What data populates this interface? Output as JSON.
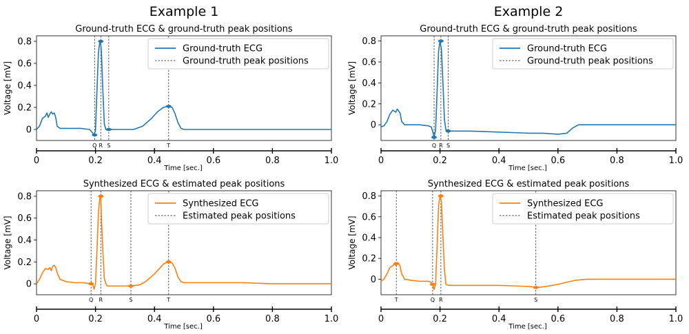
{
  "chart_data": [
    {
      "type": "line",
      "example_title": "Example 1",
      "title": "Ground-truth ECG & ground-truth peak positions",
      "ylabel": "Voltage [mV]",
      "xlabel": "Time [sec.]",
      "ylim": [
        -0.1,
        0.85
      ],
      "xlim": [
        0,
        1
      ],
      "yticks": [
        "0",
        "0.2",
        "0.4",
        "0.6",
        "0.8"
      ],
      "xticks": [
        "0",
        "0.2",
        "0.4",
        "0.6",
        "0.8",
        "1.0"
      ],
      "color": "#1f77b4",
      "legend_position": "top-right",
      "series": [
        {
          "name": "Ground-truth ECG",
          "x": [
            0,
            0.01,
            0.02,
            0.03,
            0.035,
            0.04,
            0.045,
            0.05,
            0.055,
            0.06,
            0.065,
            0.07,
            0.08,
            0.09,
            0.1,
            0.12,
            0.15,
            0.18,
            0.19,
            0.195,
            0.2,
            0.205,
            0.21,
            0.215,
            0.218,
            0.22,
            0.225,
            0.23,
            0.235,
            0.24,
            0.245,
            0.25,
            0.27,
            0.3,
            0.33,
            0.36,
            0.39,
            0.41,
            0.43,
            0.445,
            0.46,
            0.47,
            0.48,
            0.49,
            0.5,
            0.55,
            0.6,
            0.7,
            0.8,
            0.9,
            1.0
          ],
          "y": [
            0,
            0.03,
            0.1,
            0.12,
            0.15,
            0.11,
            0.14,
            0.16,
            0.14,
            0.15,
            0.11,
            0.03,
            0.01,
            0.01,
            0.01,
            0.01,
            0.01,
            0.0,
            -0.03,
            -0.05,
            -0.01,
            0.35,
            0.7,
            0.8,
            0.77,
            0.7,
            0.35,
            0.05,
            0.0,
            0.0,
            0.0,
            0.0,
            0.0,
            0.0,
            0.0,
            0.03,
            0.1,
            0.16,
            0.2,
            0.21,
            0.2,
            0.14,
            0.06,
            0.01,
            0.0,
            0.0,
            0.0,
            0.0,
            0.0,
            0.0,
            0.0
          ]
        }
      ],
      "peaks_legend": "Ground-truth peak positions",
      "peaks": [
        {
          "label": "Q",
          "x": 0.197,
          "y": -0.05
        },
        {
          "label": "R",
          "x": 0.218,
          "y": 0.8
        },
        {
          "label": "S",
          "x": 0.245,
          "y": 0.0
        },
        {
          "label": "T",
          "x": 0.448,
          "y": 0.21
        }
      ]
    },
    {
      "type": "line",
      "example_title": "Example 2",
      "title": "Ground-truth ECG & ground-truth peak positions",
      "ylabel": "Voltage [mV]",
      "xlabel": "Time [sec.]",
      "ylim": [
        -0.15,
        0.85
      ],
      "xlim": [
        0,
        1
      ],
      "yticks": [
        "0",
        "0.2",
        "0.4",
        "0.6",
        "0.8"
      ],
      "xticks": [
        "0",
        "0.2",
        "0.4",
        "0.6",
        "0.8",
        "1.0"
      ],
      "color": "#1f77b4",
      "legend_position": "top-right",
      "series": [
        {
          "name": "Ground-truth ECG",
          "x": [
            0,
            0.01,
            0.02,
            0.03,
            0.04,
            0.05,
            0.055,
            0.06,
            0.065,
            0.07,
            0.08,
            0.1,
            0.13,
            0.16,
            0.17,
            0.175,
            0.18,
            0.185,
            0.19,
            0.195,
            0.2,
            0.205,
            0.21,
            0.215,
            0.22,
            0.225,
            0.23,
            0.24,
            0.26,
            0.3,
            0.4,
            0.5,
            0.55,
            0.6,
            0.63,
            0.65,
            0.67,
            0.7,
            0.8,
            0.9,
            1.0
          ],
          "y": [
            -0.02,
            -0.01,
            0.03,
            0.1,
            0.14,
            0.12,
            0.15,
            0.13,
            0.11,
            0.03,
            0.0,
            0.0,
            0.0,
            -0.01,
            -0.02,
            -0.06,
            -0.12,
            -0.05,
            0.3,
            0.7,
            0.8,
            0.72,
            0.4,
            0.05,
            -0.05,
            -0.05,
            -0.06,
            -0.06,
            -0.06,
            -0.06,
            -0.07,
            -0.08,
            -0.08,
            -0.09,
            -0.08,
            -0.03,
            0.0,
            0.0,
            0.0,
            0.0,
            0.0
          ]
        }
      ],
      "peaks_legend": "Ground-truth peak positions",
      "peaks": [
        {
          "label": "Q",
          "x": 0.18,
          "y": -0.12
        },
        {
          "label": "R",
          "x": 0.203,
          "y": 0.8
        },
        {
          "label": "S",
          "x": 0.228,
          "y": -0.06
        }
      ]
    },
    {
      "type": "line",
      "title": "Synthesized ECG & estimated peak positions",
      "ylabel": "Voltage [mV]",
      "xlabel": "Time [sec.]",
      "ylim": [
        -0.1,
        0.85
      ],
      "xlim": [
        0,
        1
      ],
      "yticks": [
        "0",
        "0.2",
        "0.4",
        "0.6",
        "0.8"
      ],
      "xticks": [
        "0",
        "0.2",
        "0.4",
        "0.6",
        "0.8",
        "1.0"
      ],
      "color": "#ff7f0e",
      "legend_position": "top-right",
      "series": [
        {
          "name": "Synthesized ECG",
          "x": [
            0,
            0.01,
            0.02,
            0.03,
            0.04,
            0.045,
            0.05,
            0.055,
            0.06,
            0.065,
            0.07,
            0.08,
            0.1,
            0.13,
            0.16,
            0.18,
            0.19,
            0.195,
            0.2,
            0.205,
            0.21,
            0.215,
            0.218,
            0.22,
            0.225,
            0.23,
            0.235,
            0.24,
            0.26,
            0.29,
            0.32,
            0.35,
            0.37,
            0.4,
            0.42,
            0.43,
            0.445,
            0.46,
            0.47,
            0.48,
            0.49,
            0.5,
            0.55,
            0.6,
            0.7,
            0.8,
            0.9,
            1.0
          ],
          "y": [
            0,
            0.04,
            0.1,
            0.14,
            0.13,
            0.15,
            0.12,
            0.16,
            0.17,
            0.15,
            0.1,
            0.04,
            0.02,
            0.01,
            0.01,
            0.0,
            0.0,
            -0.05,
            0.0,
            0.3,
            0.65,
            0.8,
            0.78,
            0.6,
            0.3,
            0.05,
            0.0,
            -0.02,
            -0.02,
            -0.02,
            -0.02,
            -0.01,
            0.02,
            0.09,
            0.15,
            0.18,
            0.2,
            0.19,
            0.14,
            0.06,
            0.02,
            0.01,
            0.01,
            0.01,
            0.01,
            0.0,
            0.0,
            0.0
          ]
        }
      ],
      "peaks_legend": "Estimated peak positions",
      "peaks": [
        {
          "label": "Q",
          "x": 0.185,
          "y": 0.0
        },
        {
          "label": "R",
          "x": 0.218,
          "y": 0.8
        },
        {
          "label": "S",
          "x": 0.32,
          "y": -0.02
        },
        {
          "label": "T",
          "x": 0.448,
          "y": 0.2
        }
      ]
    },
    {
      "type": "line",
      "title": "Synthesized ECG & estimated peak positions",
      "ylabel": "Voltage [mV]",
      "xlabel": "Time [sec.]",
      "ylim": [
        -0.15,
        0.85
      ],
      "xlim": [
        0,
        1
      ],
      "yticks": [
        "0",
        "0.2",
        "0.4",
        "0.6",
        "0.8"
      ],
      "xticks": [
        "0",
        "0.2",
        "0.4",
        "0.6",
        "0.8",
        "1.0"
      ],
      "color": "#ff7f0e",
      "legend_position": "top-right",
      "series": [
        {
          "name": "Synthesized ECG",
          "x": [
            0,
            0.01,
            0.02,
            0.03,
            0.04,
            0.045,
            0.05,
            0.055,
            0.06,
            0.065,
            0.07,
            0.08,
            0.1,
            0.13,
            0.16,
            0.17,
            0.175,
            0.18,
            0.185,
            0.19,
            0.195,
            0.2,
            0.205,
            0.21,
            0.215,
            0.22,
            0.23,
            0.26,
            0.3,
            0.4,
            0.5,
            0.53,
            0.56,
            0.6,
            0.63,
            0.66,
            0.7,
            0.8,
            0.9,
            1.0
          ],
          "y": [
            -0.02,
            0.0,
            0.05,
            0.11,
            0.13,
            0.15,
            0.13,
            0.16,
            0.15,
            0.12,
            0.05,
            0.0,
            -0.01,
            -0.02,
            -0.02,
            -0.03,
            -0.05,
            -0.1,
            -0.05,
            0.3,
            0.7,
            0.8,
            0.74,
            0.4,
            0.1,
            -0.05,
            -0.06,
            -0.06,
            -0.06,
            -0.06,
            -0.07,
            -0.08,
            -0.07,
            -0.05,
            -0.03,
            -0.01,
            0.0,
            0.0,
            0.0,
            0.0
          ]
        }
      ],
      "peaks_legend": "Estimated peak positions",
      "peaks": [
        {
          "label": "T",
          "x": 0.052,
          "y": 0.15
        },
        {
          "label": "Q",
          "x": 0.175,
          "y": -0.05
        },
        {
          "label": "R",
          "x": 0.203,
          "y": 0.8
        },
        {
          "label": "S",
          "x": 0.525,
          "y": -0.08
        }
      ]
    }
  ]
}
